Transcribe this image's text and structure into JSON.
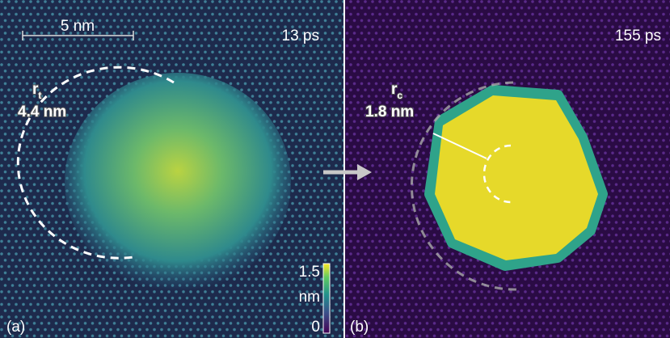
{
  "panels": [
    {
      "label": "(a)",
      "time": "13 ps",
      "scale_bar": "5 nm",
      "radius": {
        "symbol": "r",
        "subscript": "t",
        "value": "4.4 nm"
      },
      "colorbar": {
        "max": "1.5",
        "unit": "nm",
        "min": "0"
      }
    },
    {
      "label": "(b)",
      "time": "155 ps",
      "radius": {
        "symbol": "r",
        "subscript": "c",
        "value": "1.8 nm"
      }
    }
  ]
}
